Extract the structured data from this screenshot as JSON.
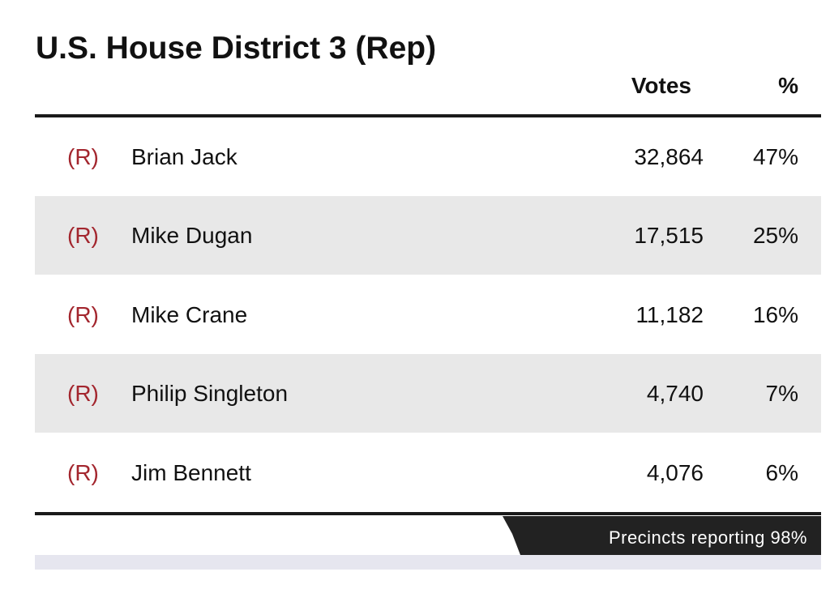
{
  "title": "U.S. House District 3 (Rep)",
  "table": {
    "header": {
      "votes": "Votes",
      "percent": "%"
    },
    "rows": [
      [
        "(R)",
        "Brian Jack",
        "32,864",
        "47%"
      ],
      [
        "(R)",
        "Mike Dugan",
        "17,515",
        "25%"
      ],
      [
        "(R)",
        "Mike Crane",
        "11,182",
        "16%"
      ],
      [
        "(R)",
        "Philip Singleton",
        "4,740",
        "7%"
      ],
      [
        "(R)",
        "Jim Bennett",
        "4,076",
        "6%"
      ]
    ]
  },
  "footer": "Precincts reporting 98%"
}
